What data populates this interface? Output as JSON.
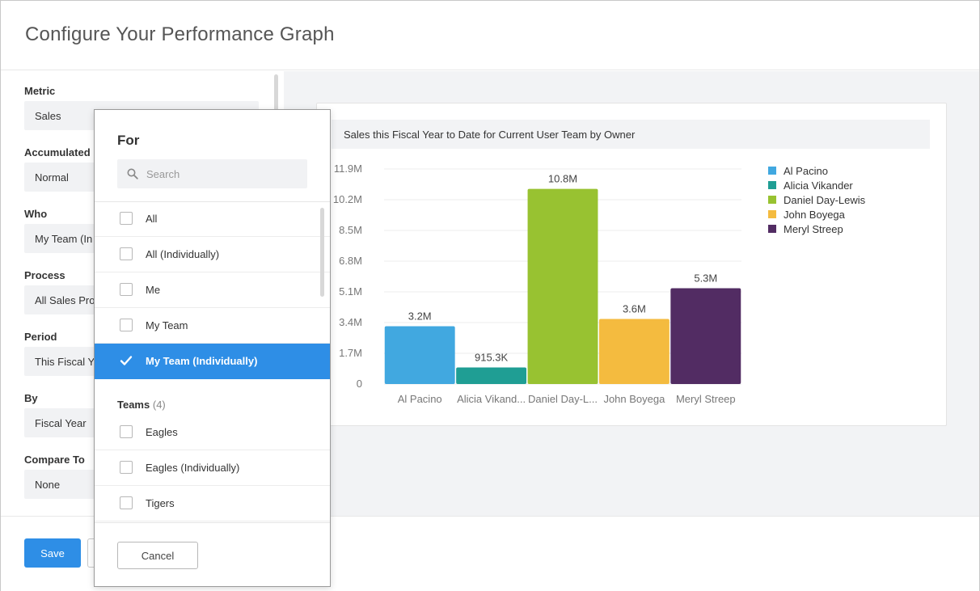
{
  "modal": {
    "title": "Configure Your Performance Graph"
  },
  "form": {
    "fields": [
      {
        "label": "Metric",
        "value": "Sales"
      },
      {
        "label": "Accumulated",
        "value": "Normal"
      },
      {
        "label": "Who",
        "value": "My Team (In"
      },
      {
        "label": "Process",
        "value": "All Sales Pro"
      },
      {
        "label": "Period",
        "value": "This Fiscal Y"
      },
      {
        "label": "By",
        "value": "Fiscal Year"
      },
      {
        "label": "Compare To",
        "value": "None"
      }
    ]
  },
  "footer": {
    "save_label": "Save"
  },
  "dropdown": {
    "title": "For",
    "search_placeholder": "Search",
    "items": [
      {
        "label": "All",
        "selected": false
      },
      {
        "label": "All (Individually)",
        "selected": false
      },
      {
        "label": "Me",
        "selected": false
      },
      {
        "label": "My Team",
        "selected": false
      },
      {
        "label": "My Team (Individually)",
        "selected": true
      }
    ],
    "group": {
      "label": "Teams",
      "count": "(4)"
    },
    "team_items": [
      {
        "label": "Eagles"
      },
      {
        "label": "Eagles (Individually)"
      },
      {
        "label": "Tigers"
      }
    ],
    "cancel_label": "Cancel",
    "selected_color": "#2e8ee6"
  },
  "chart_title": "Sales this Fiscal Year to Date for Current User Team by Owner",
  "chart_data": {
    "type": "bar",
    "title": "Sales this Fiscal Year to Date for Current User Team by Owner",
    "categories": [
      "Al Pacino",
      "Alicia Vikand...",
      "Daniel Day-L...",
      "John Boyega",
      "Meryl Streep"
    ],
    "values": [
      3.2,
      0.9153,
      10.8,
      3.6,
      5.3
    ],
    "value_labels": [
      "3.2M",
      "915.3K",
      "10.8M",
      "3.6M",
      "5.3M"
    ],
    "colors": [
      "#41a8e0",
      "#1f9e94",
      "#98c231",
      "#f4bb3f",
      "#522c63"
    ],
    "y_ticks": [
      0,
      1.7,
      3.4,
      5.1,
      6.8,
      8.5,
      10.2,
      11.9
    ],
    "y_tick_labels": [
      "0",
      "1.7M",
      "3.4M",
      "5.1M",
      "6.8M",
      "8.5M",
      "10.2M",
      "11.9M"
    ],
    "ylim": [
      0,
      11.9
    ],
    "grid": true,
    "legend": {
      "placement": "right",
      "entries": [
        "Al Pacino",
        "Alicia Vikander",
        "Daniel Day-Lewis",
        "John Boyega",
        "Meryl Streep"
      ]
    }
  }
}
